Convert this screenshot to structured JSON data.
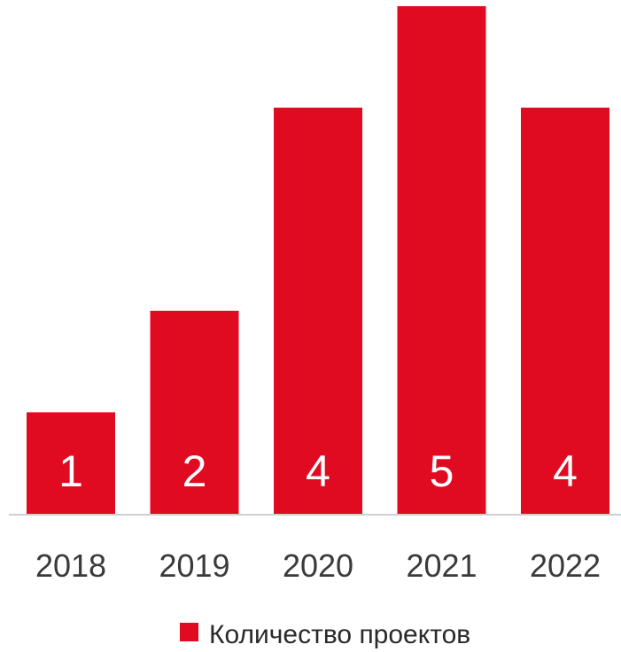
{
  "chart_data": {
    "type": "bar",
    "categories": [
      "2018",
      "2019",
      "2020",
      "2021",
      "2022"
    ],
    "series": [
      {
        "name": "Количество проектов",
        "values": [
          1,
          2,
          4,
          5,
          4
        ],
        "color": "#e00b21"
      }
    ],
    "data_labels": [
      "1",
      "2",
      "4",
      "5",
      "4"
    ],
    "ylim": [
      0,
      5
    ],
    "grid": false,
    "legend": {
      "position": "bottom",
      "label": "Количество проектов"
    },
    "axis_color": "#cfcfcf"
  }
}
